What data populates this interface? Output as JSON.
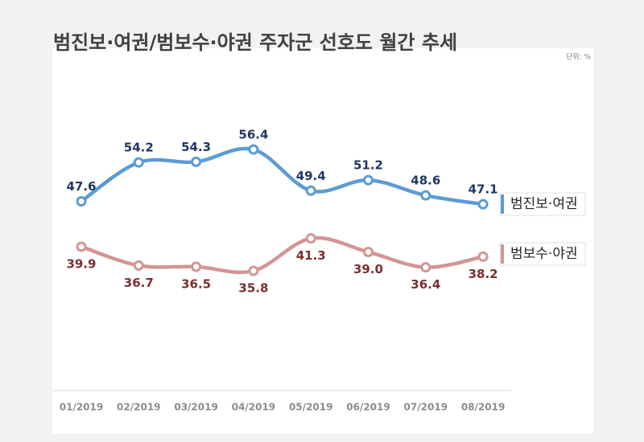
{
  "chart_data": {
    "type": "line",
    "title": "범진보·여권/범보수·야권 주자군 선호도 월간 추세",
    "unit_note": "단위: %",
    "categories": [
      "01/2019",
      "02/2019",
      "03/2019",
      "04/2019",
      "05/2019",
      "06/2019",
      "07/2019",
      "08/2019"
    ],
    "series": [
      {
        "name": "범진보·여권",
        "color": "#5b9bd5",
        "label_color": "#1f3864",
        "values": [
          47.6,
          54.2,
          54.3,
          56.4,
          49.4,
          51.2,
          48.6,
          47.1
        ],
        "value_labels": [
          "47.6",
          "54.2",
          "54.3",
          "56.4",
          "49.4",
          "51.2",
          "48.6",
          "47.1"
        ]
      },
      {
        "name": "범보수·야권",
        "color": "#d29595",
        "label_color": "#7b2f2f",
        "values": [
          39.9,
          36.7,
          36.5,
          35.8,
          41.3,
          39.0,
          36.4,
          38.2
        ],
        "value_labels": [
          "39.9",
          "36.7",
          "36.5",
          "35.8",
          "41.3",
          "39.0",
          "36.4",
          "38.2"
        ]
      }
    ]
  }
}
